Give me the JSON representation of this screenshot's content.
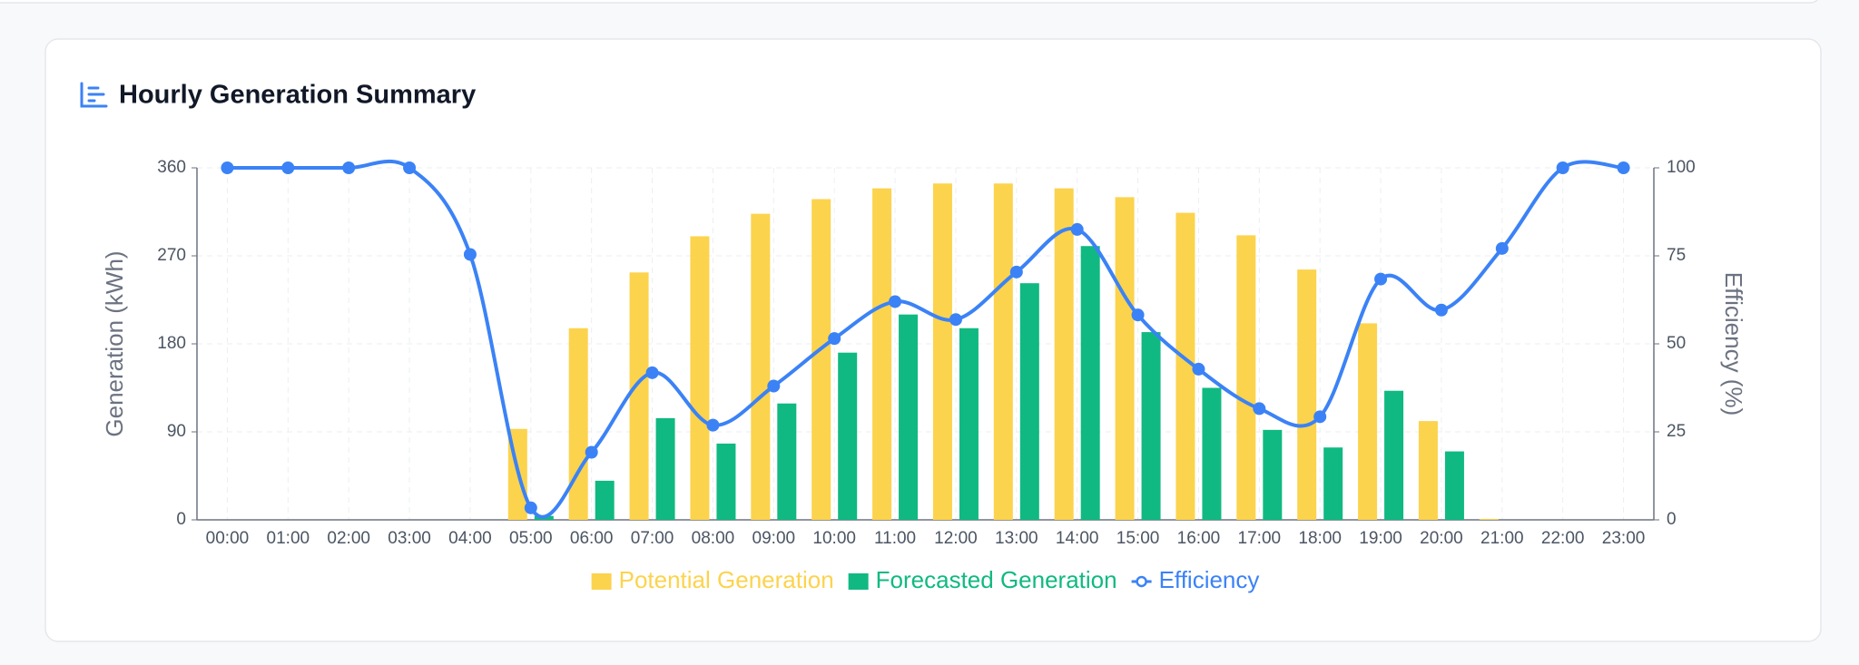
{
  "chart_data": {
    "type": "bar",
    "title": "Hourly Generation Summary",
    "categories": [
      "00:00",
      "01:00",
      "02:00",
      "03:00",
      "04:00",
      "05:00",
      "06:00",
      "07:00",
      "08:00",
      "09:00",
      "10:00",
      "11:00",
      "12:00",
      "13:00",
      "14:00",
      "15:00",
      "16:00",
      "17:00",
      "18:00",
      "19:00",
      "20:00",
      "21:00",
      "22:00",
      "23:00"
    ],
    "y_label": "Generation (kWh)",
    "y2_label": "Efficiency (%)",
    "ylim": [
      0,
      360
    ],
    "yticks": [
      0,
      90,
      180,
      270,
      360
    ],
    "y2lim": [
      0,
      100
    ],
    "y2ticks": [
      0,
      25,
      50,
      75,
      100
    ],
    "grid": true,
    "legend": "bottom",
    "series": [
      {
        "name": "Potential Generation",
        "type": "bar",
        "color": "#fcd34d",
        "values": [
          0,
          0,
          0,
          0,
          0,
          93,
          196,
          253,
          290,
          313,
          328,
          339,
          344,
          344,
          339,
          330,
          314,
          291,
          256,
          201,
          101,
          1,
          0,
          0
        ]
      },
      {
        "name": "Forecasted Generation",
        "type": "bar",
        "color": "#10b981",
        "values": [
          0,
          0,
          0,
          0,
          0,
          4,
          40,
          104,
          78,
          119,
          171,
          210,
          196,
          242,
          280,
          192,
          135,
          92,
          74,
          132,
          70,
          0,
          0,
          0
        ]
      },
      {
        "name": "Efficiency",
        "type": "line",
        "axis": "y2",
        "color": "#3b82f6",
        "values": [
          100,
          100,
          100,
          100,
          75.4,
          3.4,
          19.2,
          41.8,
          26.9,
          38,
          51.5,
          62,
          56.9,
          70.4,
          82.5,
          58.2,
          42.8,
          31.6,
          29.3,
          68.4,
          59.6,
          77.1,
          100,
          100
        ]
      }
    ]
  }
}
